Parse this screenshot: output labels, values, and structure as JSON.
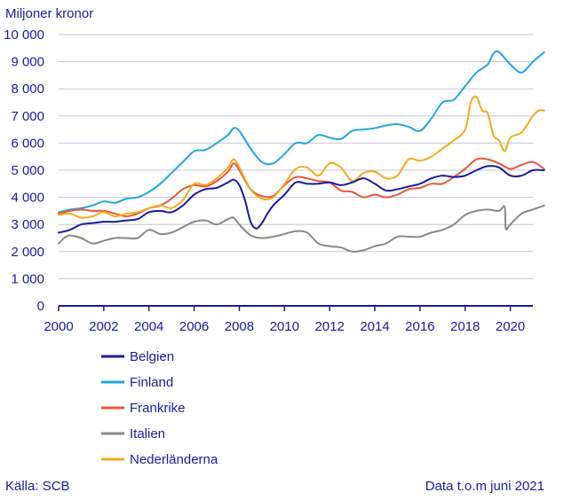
{
  "chart_data": {
    "type": "line",
    "ylabel": "Miljoner kronor",
    "ylim": [
      0,
      10000
    ],
    "yticks": [
      0,
      1000,
      2000,
      3000,
      4000,
      5000,
      6000,
      7000,
      8000,
      9000,
      10000
    ],
    "ytick_labels": [
      "0",
      "1 000",
      "2 000",
      "3 000",
      "4 000",
      "5 000",
      "6 000",
      "7 000",
      "8 000",
      "9 000",
      "10 000"
    ],
    "xlim": [
      2000,
      2021
    ],
    "xticks": [
      2000,
      2002,
      2004,
      2006,
      2008,
      2010,
      2012,
      2014,
      2016,
      2018,
      2020
    ],
    "xtick_labels": [
      "2000",
      "2002",
      "2004",
      "2006",
      "2008",
      "2010",
      "2012",
      "2014",
      "2016",
      "2018",
      "2020"
    ],
    "grid": "horizontal",
    "legend_position": "bottom-left",
    "source_note": "Källa: SCB",
    "data_note": "Data t.o.m juni 2021",
    "series": [
      {
        "name": "Belgien",
        "color": "#1a1a9c",
        "x": [
          2000.0,
          2000.5,
          2001.0,
          2001.5,
          2002.0,
          2002.5,
          2003.0,
          2003.5,
          2004.0,
          2004.5,
          2005.0,
          2005.5,
          2006.0,
          2006.5,
          2007.0,
          2007.5,
          2007.75,
          2008.0,
          2008.25,
          2008.5,
          2008.75,
          2009.0,
          2009.25,
          2009.5,
          2010.0,
          2010.5,
          2011.0,
          2011.5,
          2012.0,
          2012.5,
          2013.0,
          2013.5,
          2014.0,
          2014.5,
          2015.0,
          2015.5,
          2016.0,
          2016.5,
          2017.0,
          2017.5,
          2018.0,
          2018.5,
          2019.0,
          2019.5,
          2020.0,
          2020.5,
          2021.0,
          2021.5
        ],
        "y": [
          2700,
          2800,
          3000,
          3050,
          3100,
          3100,
          3150,
          3200,
          3450,
          3500,
          3450,
          3700,
          4100,
          4300,
          4350,
          4550,
          4650,
          4450,
          3900,
          3100,
          2850,
          3050,
          3400,
          3700,
          4100,
          4550,
          4500,
          4500,
          4550,
          4450,
          4550,
          4700,
          4500,
          4250,
          4300,
          4400,
          4500,
          4700,
          4800,
          4750,
          4800,
          5000,
          5150,
          5100,
          4800,
          4800,
          5000,
          5000
        ]
      },
      {
        "name": "Finland",
        "color": "#1ea8dc",
        "x": [
          2000.0,
          2000.5,
          2001.0,
          2001.5,
          2002.0,
          2002.5,
          2003.0,
          2003.5,
          2004.0,
          2004.5,
          2005.0,
          2005.5,
          2006.0,
          2006.5,
          2007.0,
          2007.5,
          2007.75,
          2008.0,
          2008.5,
          2009.0,
          2009.5,
          2010.0,
          2010.5,
          2011.0,
          2011.5,
          2012.0,
          2012.5,
          2013.0,
          2013.5,
          2014.0,
          2014.5,
          2015.0,
          2015.5,
          2016.0,
          2016.5,
          2017.0,
          2017.5,
          2018.0,
          2018.5,
          2019.0,
          2019.25,
          2019.5,
          2020.0,
          2020.5,
          2021.0,
          2021.5
        ],
        "y": [
          3450,
          3550,
          3600,
          3700,
          3850,
          3800,
          3950,
          4000,
          4200,
          4500,
          4900,
          5300,
          5700,
          5750,
          6000,
          6300,
          6550,
          6450,
          5800,
          5300,
          5250,
          5600,
          6000,
          6000,
          6300,
          6200,
          6150,
          6450,
          6500,
          6550,
          6650,
          6700,
          6600,
          6450,
          6900,
          7500,
          7600,
          8100,
          8600,
          8900,
          9300,
          9350,
          8900,
          8600,
          9000,
          9350
        ]
      },
      {
        "name": "Frankrike",
        "color": "#e8563a",
        "x": [
          2000.0,
          2000.5,
          2001.0,
          2001.5,
          2002.0,
          2002.5,
          2003.0,
          2003.5,
          2004.0,
          2004.5,
          2005.0,
          2005.5,
          2006.0,
          2006.5,
          2007.0,
          2007.5,
          2007.75,
          2008.0,
          2008.5,
          2009.0,
          2009.5,
          2010.0,
          2010.5,
          2011.0,
          2011.5,
          2012.0,
          2012.5,
          2013.0,
          2013.5,
          2014.0,
          2014.5,
          2015.0,
          2015.5,
          2016.0,
          2016.5,
          2017.0,
          2017.5,
          2018.0,
          2018.5,
          2019.0,
          2019.5,
          2020.0,
          2020.5,
          2021.0,
          2021.5
        ],
        "y": [
          3400,
          3500,
          3550,
          3500,
          3500,
          3400,
          3300,
          3400,
          3600,
          3700,
          3950,
          4300,
          4450,
          4400,
          4600,
          4950,
          5250,
          5000,
          4300,
          4050,
          4050,
          4450,
          4750,
          4700,
          4600,
          4550,
          4250,
          4200,
          4000,
          4100,
          4000,
          4100,
          4300,
          4350,
          4500,
          4500,
          4750,
          5050,
          5400,
          5400,
          5250,
          5050,
          5200,
          5300,
          5050
        ]
      },
      {
        "name": "Italien",
        "color": "#888888",
        "x": [
          2000.0,
          2000.25,
          2000.5,
          2001.0,
          2001.5,
          2002.0,
          2002.5,
          2003.0,
          2003.5,
          2004.0,
          2004.5,
          2005.0,
          2005.5,
          2006.0,
          2006.5,
          2007.0,
          2007.5,
          2007.75,
          2008.0,
          2008.5,
          2009.0,
          2009.5,
          2010.0,
          2010.5,
          2011.0,
          2011.5,
          2012.0,
          2012.5,
          2013.0,
          2013.5,
          2014.0,
          2014.5,
          2015.0,
          2015.5,
          2016.0,
          2016.5,
          2017.0,
          2017.5,
          2018.0,
          2018.5,
          2019.0,
          2019.5,
          2019.75,
          2019.8,
          2020.0,
          2020.5,
          2021.0,
          2021.5
        ],
        "y": [
          2300,
          2500,
          2600,
          2500,
          2300,
          2400,
          2500,
          2500,
          2500,
          2800,
          2650,
          2700,
          2900,
          3100,
          3150,
          3000,
          3200,
          3250,
          3000,
          2600,
          2500,
          2550,
          2650,
          2750,
          2700,
          2300,
          2200,
          2150,
          2000,
          2050,
          2200,
          2300,
          2550,
          2550,
          2550,
          2700,
          2800,
          3000,
          3350,
          3500,
          3550,
          3500,
          3650,
          2850,
          3000,
          3400,
          3550,
          3700
        ]
      },
      {
        "name": "Nederländerna",
        "color": "#f0ae1c",
        "x": [
          2000.0,
          2000.5,
          2001.0,
          2001.5,
          2002.0,
          2002.5,
          2003.0,
          2003.5,
          2004.0,
          2004.5,
          2005.0,
          2005.5,
          2006.0,
          2006.5,
          2007.0,
          2007.5,
          2007.75,
          2008.0,
          2008.5,
          2009.0,
          2009.5,
          2010.0,
          2010.5,
          2011.0,
          2011.5,
          2012.0,
          2012.5,
          2013.0,
          2013.5,
          2014.0,
          2014.5,
          2015.0,
          2015.5,
          2016.0,
          2016.5,
          2017.0,
          2017.5,
          2018.0,
          2018.25,
          2018.5,
          2018.75,
          2019.0,
          2019.25,
          2019.5,
          2019.75,
          2020.0,
          2020.5,
          2021.0,
          2021.25,
          2021.5
        ],
        "y": [
          3350,
          3400,
          3250,
          3300,
          3450,
          3300,
          3400,
          3450,
          3600,
          3700,
          3600,
          3900,
          4500,
          4450,
          4700,
          5100,
          5400,
          5100,
          4300,
          3950,
          4000,
          4500,
          5050,
          5100,
          4800,
          5250,
          5100,
          4600,
          4900,
          4950,
          4700,
          4800,
          5400,
          5350,
          5500,
          5800,
          6100,
          6500,
          7500,
          7700,
          7200,
          7100,
          6300,
          6100,
          5700,
          6200,
          6400,
          7000,
          7200,
          7200
        ]
      }
    ]
  }
}
